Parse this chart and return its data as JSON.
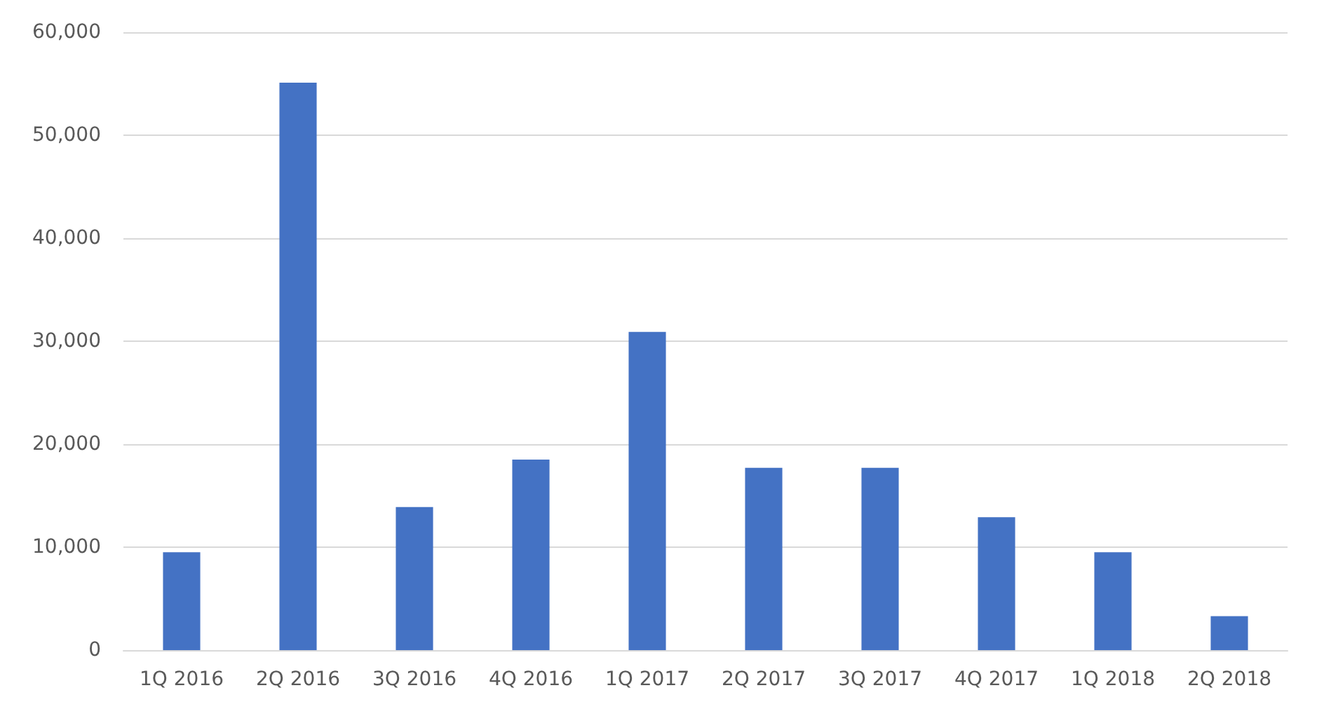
{
  "chart_data": {
    "type": "bar",
    "categories": [
      "1Q 2016",
      "2Q 2016",
      "3Q 2016",
      "4Q 2016",
      "1Q 2017",
      "2Q 2017",
      "3Q 2017",
      "4Q 2017",
      "1Q 2018",
      "2Q 2018"
    ],
    "values": [
      9500,
      55100,
      13900,
      18500,
      30900,
      17700,
      17700,
      12900,
      9500,
      3300
    ],
    "color": "#4472c4",
    "ylim": [
      0,
      60000
    ],
    "yticks": [
      0,
      {
        "value": 10000,
        "label": "10,000"
      },
      {
        "value": 20000,
        "label": "20,000"
      },
      {
        "value": 30000,
        "label": "30,000"
      },
      {
        "value": 40000,
        "label": "40,000"
      },
      {
        "value": 50000,
        "label": "50,000"
      },
      {
        "value": 60000,
        "label": "60,000"
      }
    ],
    "grid": "y"
  }
}
